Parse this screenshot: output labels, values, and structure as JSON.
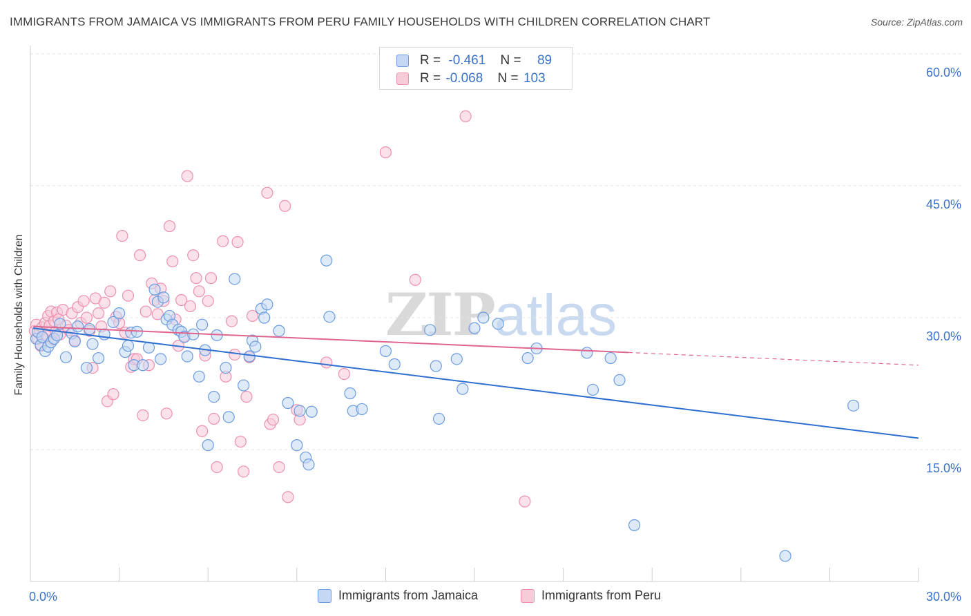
{
  "header": {
    "title": "IMMIGRANTS FROM JAMAICA VS IMMIGRANTS FROM PERU FAMILY HOUSEHOLDS WITH CHILDREN CORRELATION CHART",
    "source": "Source: ZipAtlas.com"
  },
  "watermark": {
    "zip": "ZIP",
    "atlas": "atlas"
  },
  "stats_legend": [
    {
      "r_label": "R =",
      "r_value": "-0.461",
      "n_label": "N =",
      "n_value": "89"
    },
    {
      "r_label": "R =",
      "r_value": "-0.068",
      "n_label": "N =",
      "n_value": "103"
    }
  ],
  "colors": {
    "jamaica_fill": "#c5d8f3",
    "jamaica_stroke": "#6a9be0",
    "jamaica_line": "#2f6fcf",
    "peru_fill": "#f8cbd8",
    "peru_stroke": "#ee8fad",
    "peru_line": "#e0658e",
    "axis_text": "#3a72c8",
    "grid": "#e2e2e2"
  },
  "chart_data": {
    "type": "scatter",
    "title": "IMMIGRANTS FROM JAMAICA VS IMMIGRANTS FROM PERU FAMILY HOUSEHOLDS WITH CHILDREN CORRELATION CHART",
    "xlabel": "",
    "ylabel": "Family Households with Children",
    "xlim": [
      0,
      30
    ],
    "ylim": [
      0,
      60
    ],
    "x_tick_labels": [
      "0.0%",
      "30.0%"
    ],
    "y_ticks": [
      15,
      30,
      45,
      60
    ],
    "y_tick_labels": [
      "15.0%",
      "30.0%",
      "45.0%",
      "60.0%"
    ],
    "grid": true,
    "legend_position": "bottom",
    "series": [
      {
        "name": "Immigrants from Jamaica",
        "r": -0.461,
        "n": 89,
        "trend": {
          "x": [
            0.1,
            30
          ],
          "y": [
            28.8,
            16.3
          ],
          "dashed_from": null
        },
        "points": [
          [
            0.2,
            27.6
          ],
          [
            0.25,
            28.4
          ],
          [
            0.35,
            26.9
          ],
          [
            0.4,
            27.8
          ],
          [
            0.5,
            26.2
          ],
          [
            0.6,
            26.7
          ],
          [
            0.7,
            27.2
          ],
          [
            0.8,
            27.6
          ],
          [
            0.9,
            28.0
          ],
          [
            1.0,
            29.3
          ],
          [
            1.2,
            25.5
          ],
          [
            1.4,
            28.2
          ],
          [
            1.5,
            27.3
          ],
          [
            1.6,
            29.0
          ],
          [
            1.9,
            24.3
          ],
          [
            2.0,
            28.7
          ],
          [
            2.1,
            27.0
          ],
          [
            2.3,
            25.4
          ],
          [
            2.5,
            28.1
          ],
          [
            2.8,
            29.5
          ],
          [
            3.0,
            30.5
          ],
          [
            3.2,
            26.1
          ],
          [
            3.3,
            26.8
          ],
          [
            3.4,
            28.3
          ],
          [
            3.5,
            24.6
          ],
          [
            3.6,
            28.4
          ],
          [
            3.8,
            24.6
          ],
          [
            4.0,
            26.6
          ],
          [
            4.2,
            33.2
          ],
          [
            4.3,
            31.8
          ],
          [
            4.4,
            25.3
          ],
          [
            4.5,
            32.3
          ],
          [
            4.6,
            29.8
          ],
          [
            4.7,
            30.2
          ],
          [
            4.8,
            29.2
          ],
          [
            5.0,
            28.6
          ],
          [
            5.1,
            28.4
          ],
          [
            5.2,
            27.8
          ],
          [
            5.3,
            25.6
          ],
          [
            5.5,
            28.1
          ],
          [
            5.7,
            23.3
          ],
          [
            5.8,
            29.2
          ],
          [
            5.9,
            26.3
          ],
          [
            6.0,
            15.5
          ],
          [
            6.2,
            21.0
          ],
          [
            6.3,
            28.0
          ],
          [
            6.6,
            24.3
          ],
          [
            6.7,
            18.7
          ],
          [
            6.9,
            34.4
          ],
          [
            7.2,
            22.3
          ],
          [
            7.4,
            25.6
          ],
          [
            7.5,
            27.4
          ],
          [
            7.6,
            26.7
          ],
          [
            7.8,
            31.0
          ],
          [
            7.9,
            30.0
          ],
          [
            8.0,
            31.5
          ],
          [
            8.4,
            28.5
          ],
          [
            8.7,
            20.3
          ],
          [
            9.0,
            15.5
          ],
          [
            9.1,
            19.4
          ],
          [
            9.3,
            14.1
          ],
          [
            9.4,
            13.3
          ],
          [
            9.5,
            19.3
          ],
          [
            10.0,
            36.5
          ],
          [
            10.1,
            30.1
          ],
          [
            10.8,
            21.4
          ],
          [
            10.9,
            19.4
          ],
          [
            11.2,
            19.6
          ],
          [
            12.0,
            26.2
          ],
          [
            12.3,
            24.7
          ],
          [
            13.5,
            28.6
          ],
          [
            13.7,
            24.5
          ],
          [
            13.8,
            18.5
          ],
          [
            14.4,
            25.3
          ],
          [
            14.6,
            21.9
          ],
          [
            15.0,
            28.8
          ],
          [
            15.3,
            30.0
          ],
          [
            15.8,
            29.3
          ],
          [
            16.8,
            25.4
          ],
          [
            17.1,
            26.5
          ],
          [
            18.8,
            26.0
          ],
          [
            19.0,
            21.8
          ],
          [
            19.6,
            25.4
          ],
          [
            19.9,
            22.9
          ],
          [
            20.4,
            6.4
          ],
          [
            25.5,
            2.9
          ],
          [
            27.8,
            20.0
          ]
        ]
      },
      {
        "name": "Immigrants from Peru",
        "r": -0.068,
        "n": 103,
        "trend": {
          "x": [
            0.1,
            30
          ],
          "y": [
            29.0,
            24.6
          ],
          "dashed_from": 20.2
        },
        "points": [
          [
            0.15,
            28.5
          ],
          [
            0.2,
            29.2
          ],
          [
            0.25,
            27.6
          ],
          [
            0.3,
            28.2
          ],
          [
            0.35,
            26.8
          ],
          [
            0.4,
            28.9
          ],
          [
            0.45,
            27.7
          ],
          [
            0.5,
            29.4
          ],
          [
            0.55,
            28.0
          ],
          [
            0.6,
            30.2
          ],
          [
            0.65,
            29.1
          ],
          [
            0.7,
            30.7
          ],
          [
            0.75,
            27.5
          ],
          [
            0.8,
            29.6
          ],
          [
            0.85,
            28.4
          ],
          [
            0.9,
            30.6
          ],
          [
            0.95,
            29.8
          ],
          [
            1.0,
            28.1
          ],
          [
            1.1,
            30.9
          ],
          [
            1.2,
            29.1
          ],
          [
            1.3,
            28.6
          ],
          [
            1.4,
            30.5
          ],
          [
            1.5,
            27.4
          ],
          [
            1.6,
            31.2
          ],
          [
            1.7,
            29.4
          ],
          [
            1.8,
            31.9
          ],
          [
            1.9,
            30.0
          ],
          [
            2.0,
            28.5
          ],
          [
            2.1,
            24.3
          ],
          [
            2.2,
            32.2
          ],
          [
            2.3,
            30.5
          ],
          [
            2.4,
            29.0
          ],
          [
            2.5,
            31.7
          ],
          [
            2.6,
            20.5
          ],
          [
            2.7,
            33.0
          ],
          [
            2.8,
            21.3
          ],
          [
            2.9,
            30.1
          ],
          [
            3.0,
            29.4
          ],
          [
            3.1,
            39.3
          ],
          [
            3.2,
            28.3
          ],
          [
            3.3,
            32.5
          ],
          [
            3.4,
            24.4
          ],
          [
            3.5,
            25.3
          ],
          [
            3.6,
            25.3
          ],
          [
            3.7,
            37.1
          ],
          [
            3.8,
            18.9
          ],
          [
            3.9,
            30.7
          ],
          [
            4.0,
            24.6
          ],
          [
            4.1,
            33.9
          ],
          [
            4.2,
            32.0
          ],
          [
            4.3,
            30.4
          ],
          [
            4.4,
            33.3
          ],
          [
            4.5,
            31.9
          ],
          [
            4.6,
            19.1
          ],
          [
            4.7,
            40.4
          ],
          [
            4.8,
            36.4
          ],
          [
            4.9,
            29.8
          ],
          [
            5.0,
            26.8
          ],
          [
            5.1,
            32.0
          ],
          [
            5.2,
            27.9
          ],
          [
            5.3,
            46.1
          ],
          [
            5.4,
            31.3
          ],
          [
            5.5,
            37.1
          ],
          [
            5.6,
            34.5
          ],
          [
            5.7,
            33.0
          ],
          [
            5.8,
            17.1
          ],
          [
            5.9,
            25.7
          ],
          [
            6.0,
            31.9
          ],
          [
            6.1,
            34.5
          ],
          [
            6.2,
            18.5
          ],
          [
            6.3,
            13.0
          ],
          [
            6.5,
            38.7
          ],
          [
            6.6,
            23.3
          ],
          [
            6.8,
            29.6
          ],
          [
            6.9,
            25.8
          ],
          [
            7.0,
            38.6
          ],
          [
            7.1,
            15.9
          ],
          [
            7.2,
            12.5
          ],
          [
            7.3,
            21.0
          ],
          [
            7.4,
            25.5
          ],
          [
            7.5,
            30.2
          ],
          [
            8.0,
            44.2
          ],
          [
            8.1,
            17.9
          ],
          [
            8.2,
            18.4
          ],
          [
            8.4,
            13.0
          ],
          [
            8.6,
            42.7
          ],
          [
            8.7,
            9.6
          ],
          [
            9.0,
            19.5
          ],
          [
            9.1,
            18.4
          ],
          [
            10.0,
            24.9
          ],
          [
            10.6,
            23.6
          ],
          [
            12.0,
            48.8
          ],
          [
            13.0,
            34.3
          ],
          [
            14.7,
            52.9
          ],
          [
            16.7,
            9.1
          ]
        ]
      }
    ]
  },
  "bottom_legend": [
    {
      "label": "Immigrants from Jamaica"
    },
    {
      "label": "Immigrants from Peru"
    }
  ]
}
